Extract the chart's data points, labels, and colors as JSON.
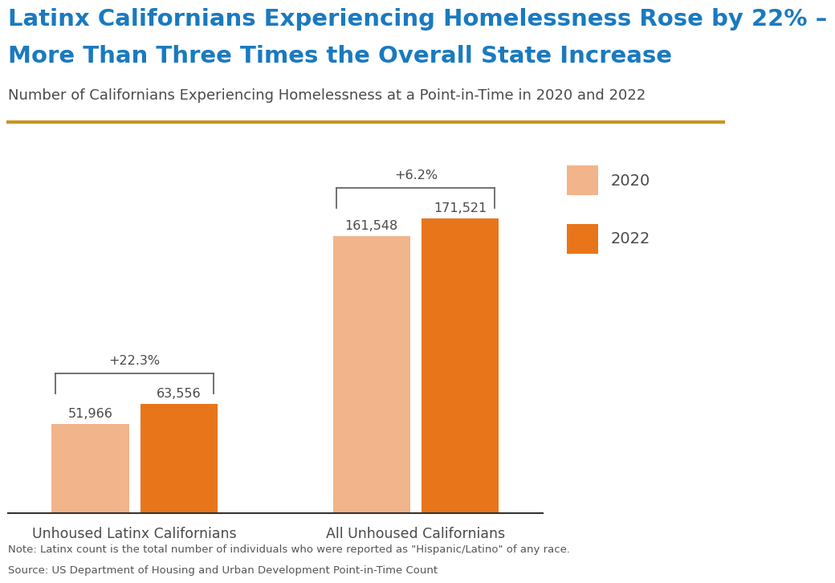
{
  "title_line1": "Latinx Californians Experiencing Homelessness Rose by 22% –",
  "title_line2": "More Than Three Times the Overall State Increase",
  "subtitle": "Number of Californians Experiencing Homelessness at a Point-in-Time in 2020 and 2022",
  "title_color": "#1a7abf",
  "subtitle_color": "#4a4a4a",
  "gold_line_color": "#c8961e",
  "categories": [
    "Unhoused Latinx Californians",
    "All Unhoused Californians"
  ],
  "values_2020": [
    51966,
    161548
  ],
  "values_2022": [
    63556,
    171521
  ],
  "labels_2020": [
    "51,966",
    "161,548"
  ],
  "labels_2022": [
    "63,556",
    "171,521"
  ],
  "pct_changes": [
    "+22.3%",
    "+6.2%"
  ],
  "color_2020": "#f2b48a",
  "color_2022": "#e8751a",
  "ylim": [
    0,
    210000
  ],
  "legend_labels": [
    "2020",
    "2022"
  ],
  "note_line1": "Note: Latinx count is the total number of individuals who were reported as \"Hispanic/Latino\" of any race.",
  "note_line2": "Source: US Department of Housing and Urban Development Point-in-Time Count",
  "note_color": "#555555",
  "background_color": "#ffffff",
  "text_color": "#4a4a4a"
}
